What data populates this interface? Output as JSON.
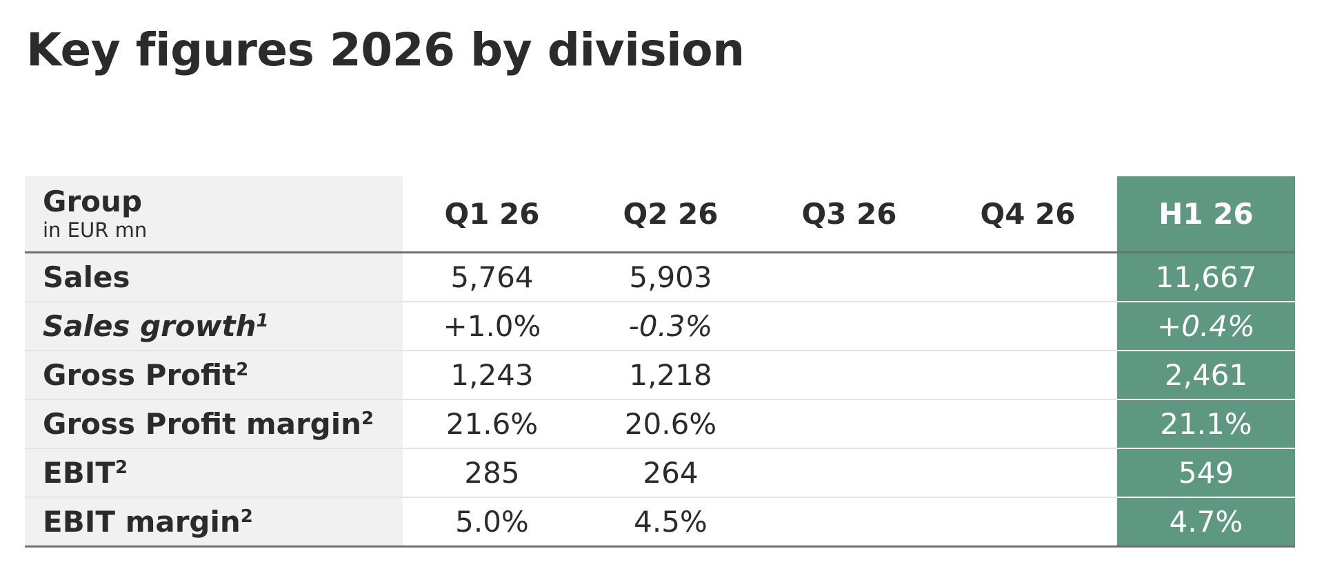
{
  "title": "Key figures 2026 by division",
  "colors": {
    "highlight_column": "#5f9880",
    "label_column_bg": "#f1f1f1",
    "text": "#2b2b2b"
  },
  "table": {
    "header": {
      "group": "Group",
      "unit": "in EUR mn",
      "columns": [
        "Q1 26",
        "Q2 26",
        "Q3 26",
        "Q4 26",
        "H1 26"
      ]
    },
    "rows": [
      {
        "label": "Sales",
        "note": "",
        "italic": false,
        "values": [
          "5,764",
          "5,903",
          "",
          "",
          "11,667"
        ]
      },
      {
        "label": "Sales growth",
        "note": "1",
        "italic": true,
        "values": [
          "+1.0%",
          "-0.3%",
          "",
          "",
          "+0.4%"
        ]
      },
      {
        "label": "Gross Profit",
        "note": "2",
        "italic": false,
        "values": [
          "1,243",
          "1,218",
          "",
          "",
          "2,461"
        ]
      },
      {
        "label": "Gross Profit margin",
        "note": "2",
        "italic": false,
        "values": [
          "21.6%",
          "20.6%",
          "",
          "",
          "21.1%"
        ]
      },
      {
        "label": "EBIT",
        "note": "2",
        "italic": false,
        "values": [
          "285",
          "264",
          "",
          "",
          "549"
        ]
      },
      {
        "label": "EBIT margin",
        "note": "2",
        "italic": false,
        "values": [
          "5.0%",
          "4.5%",
          "",
          "",
          "4.7%"
        ]
      }
    ]
  }
}
